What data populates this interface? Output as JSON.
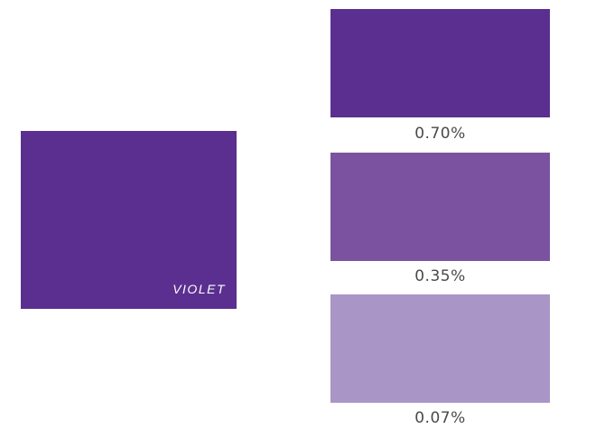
{
  "main": {
    "label": "VIOLET",
    "color": "#5b2f8f"
  },
  "tints": [
    {
      "label": "0.70%",
      "color": "#5b2f8f"
    },
    {
      "label": "0.35%",
      "color": "#7b529f"
    },
    {
      "label": "0.07%",
      "color": "#a995c6"
    }
  ]
}
